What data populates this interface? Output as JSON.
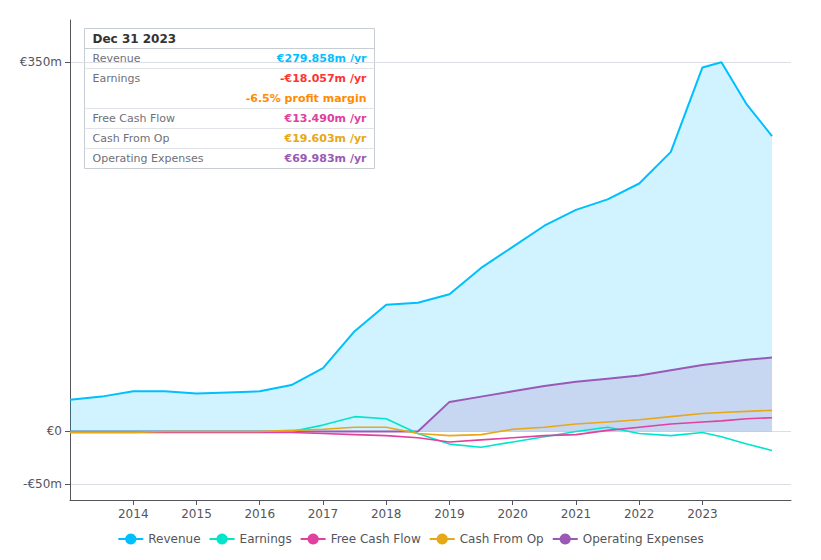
{
  "chart_data": {
    "type": "line",
    "x": [
      2013.0,
      2013.5,
      2014.0,
      2014.5,
      2015.0,
      2015.5,
      2016.0,
      2016.5,
      2017.0,
      2017.5,
      2018.0,
      2018.5,
      2019.0,
      2019.5,
      2020.0,
      2020.5,
      2021.0,
      2021.5,
      2022.0,
      2022.5,
      2023.0,
      2023.3,
      2023.7,
      2024.1
    ],
    "series": [
      {
        "name": "Revenue",
        "type": "area",
        "color": "#00bfff",
        "values": [
          30,
          33,
          38,
          38,
          36,
          37,
          38,
          44,
          60,
          95,
          120,
          122,
          130,
          155,
          175,
          195,
          210,
          220,
          235,
          265,
          345,
          350,
          310,
          280
        ]
      },
      {
        "name": "Earnings",
        "type": "line",
        "color": "#00e5cc",
        "values": [
          0,
          0,
          0,
          0,
          0,
          0,
          0,
          0,
          6,
          14,
          12,
          -2,
          -12,
          -15,
          -10,
          -5,
          0,
          4,
          -2,
          -4,
          -1,
          -5,
          -12,
          -18
        ]
      },
      {
        "name": "Free Cash Flow",
        "type": "line",
        "color": "#e040a0",
        "values": [
          -1,
          -1,
          -1,
          -1,
          -1,
          -1,
          -1,
          -1,
          -2,
          -3,
          -4,
          -6,
          -10,
          -8,
          -6,
          -4,
          -3,
          1,
          4,
          7,
          9,
          10,
          12,
          13
        ]
      },
      {
        "name": "Cash From Op",
        "type": "line",
        "color": "#e6a817",
        "values": [
          -1,
          -1,
          -1,
          0,
          0,
          0,
          0,
          1,
          2,
          4,
          4,
          -2,
          -4,
          -3,
          2,
          4,
          7,
          9,
          11,
          14,
          17,
          18,
          19,
          20
        ]
      },
      {
        "name": "Operating Expenses",
        "type": "area",
        "color": "#9b59b6",
        "values": [
          0,
          0,
          0,
          0,
          0,
          0,
          0,
          0,
          0,
          0,
          0,
          0,
          28,
          33,
          38,
          43,
          47,
          50,
          53,
          58,
          63,
          65,
          68,
          70
        ]
      }
    ],
    "xlim": [
      2013.0,
      2024.4
    ],
    "xticks": [
      2014,
      2015,
      2016,
      2017,
      2018,
      2019,
      2020,
      2021,
      2022,
      2023
    ],
    "ylim": [
      -65,
      390
    ],
    "yticks": [
      {
        "value": -50,
        "label": "-€50m"
      },
      {
        "value": 0,
        "label": "€0"
      },
      {
        "value": 350,
        "label": "€350m"
      }
    ],
    "grid": true,
    "legend": "bottom",
    "annotations": {
      "title": "Dec 31 2023",
      "rows": [
        {
          "label": "Revenue",
          "value": "€279.858m /yr",
          "color": "#00bfff"
        },
        {
          "label": "Earnings",
          "value": "-€18.057m /yr",
          "color": "#ff3333"
        },
        {
          "value": "-6.5% profit margin",
          "color": "#ff8c00"
        },
        {
          "label": "Free Cash Flow",
          "value": "€13.490m /yr",
          "color": "#e040a0"
        },
        {
          "label": "Cash From Op",
          "value": "€19.603m /yr",
          "color": "#e6a817"
        },
        {
          "label": "Operating Expenses",
          "value": "€69.983m /yr",
          "color": "#9b59b6"
        }
      ]
    }
  }
}
